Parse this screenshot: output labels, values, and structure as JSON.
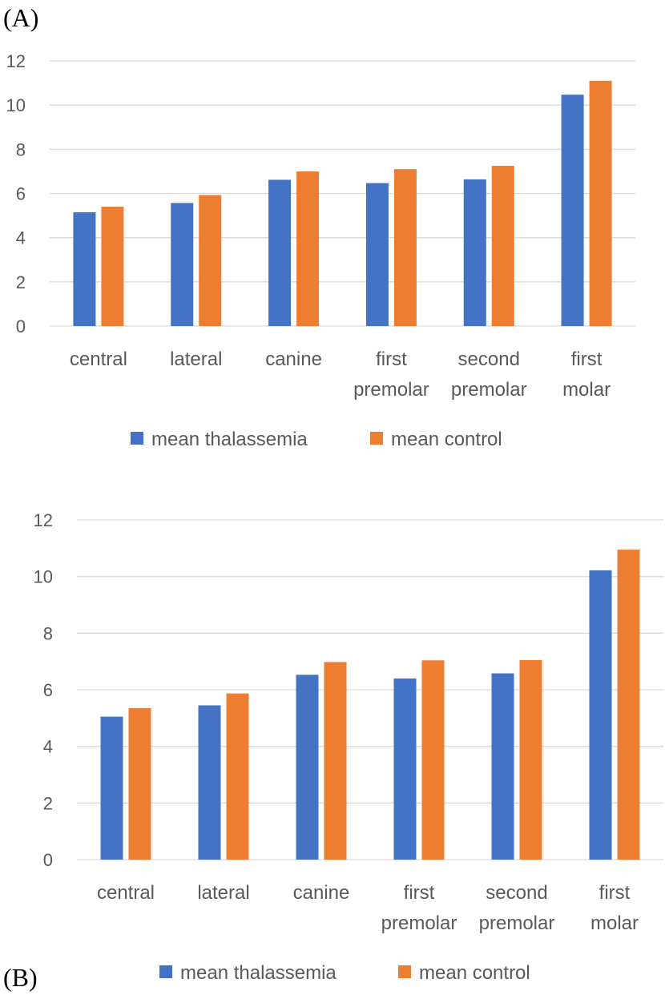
{
  "panels": {
    "a_label": "(A)",
    "b_label": "(B)"
  },
  "colors": {
    "thalassemia": "#4472C4",
    "control": "#ED7D31",
    "grid": "#D9D9D9",
    "text": "#595959"
  },
  "chart_data": [
    {
      "type": "bar",
      "panel": "(A)",
      "categories": [
        [
          "central"
        ],
        [
          "lateral"
        ],
        [
          "canine"
        ],
        [
          "first",
          "premolar"
        ],
        [
          "second",
          "premolar"
        ],
        [
          "first",
          "molar"
        ]
      ],
      "series": [
        {
          "name": "mean thalassemia",
          "values": [
            5.15,
            5.57,
            6.62,
            6.47,
            6.64,
            10.47
          ]
        },
        {
          "name": "mean control",
          "values": [
            5.4,
            5.93,
            7.0,
            7.1,
            7.25,
            11.1
          ]
        }
      ],
      "yticks": [
        0,
        2,
        4,
        6,
        8,
        10,
        12
      ],
      "ylim": [
        0,
        12
      ],
      "grid": true,
      "legend": "bottom"
    },
    {
      "type": "bar",
      "panel": "(B)",
      "categories": [
        [
          "central"
        ],
        [
          "lateral"
        ],
        [
          "canine"
        ],
        [
          "first",
          "premolar"
        ],
        [
          "second",
          "premolar"
        ],
        [
          "first",
          "molar"
        ]
      ],
      "series": [
        {
          "name": "mean thalassemia",
          "values": [
            5.05,
            5.45,
            6.53,
            6.4,
            6.58,
            10.22
          ]
        },
        {
          "name": "mean control",
          "values": [
            5.35,
            5.87,
            6.98,
            7.04,
            7.05,
            10.95
          ]
        }
      ],
      "yticks": [
        0,
        2,
        4,
        6,
        8,
        10,
        12
      ],
      "ylim": [
        0,
        12
      ],
      "grid": true,
      "legend": "bottom"
    }
  ]
}
